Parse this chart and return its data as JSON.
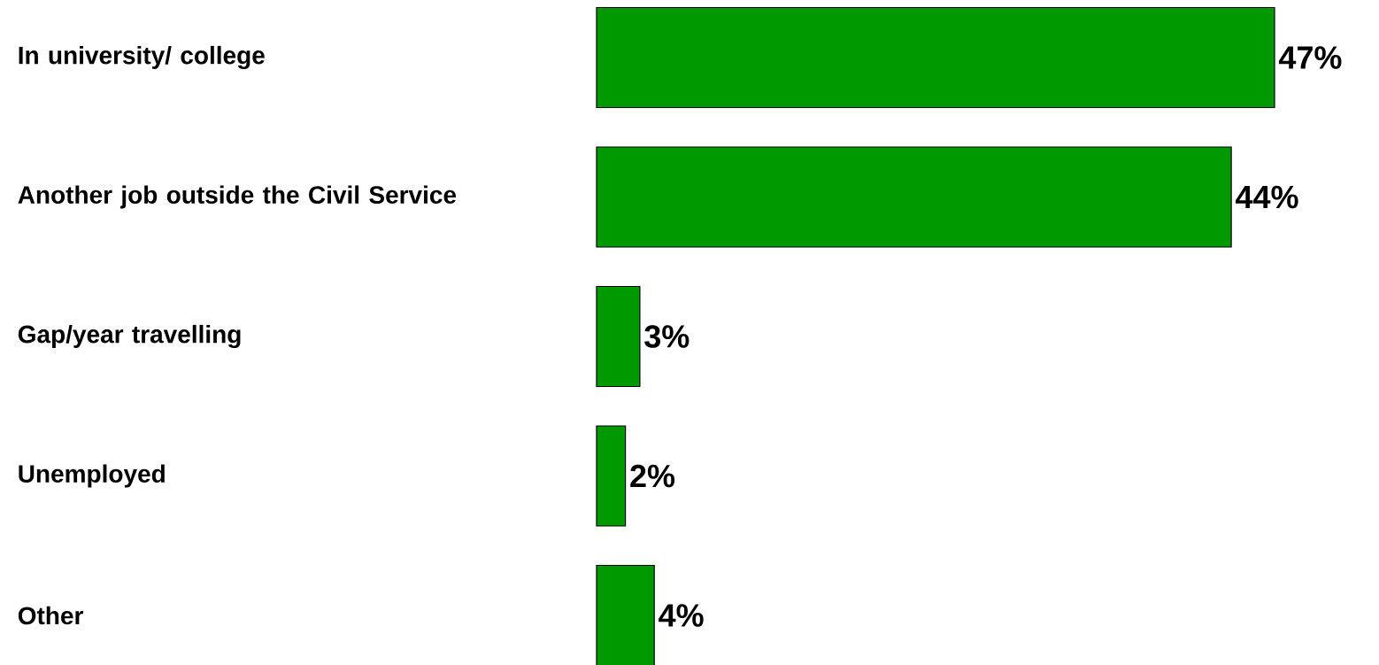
{
  "chart_data": {
    "type": "bar",
    "orientation": "horizontal",
    "categories": [
      "In university/ college",
      "Another job outside the Civil Service",
      "Gap/year travelling",
      "Unemployed",
      "Other"
    ],
    "values": [
      47,
      44,
      3,
      2,
      4
    ],
    "value_labels": [
      "47%",
      "44%",
      "3%",
      "2%",
      "4%"
    ],
    "color": "#009900"
  }
}
